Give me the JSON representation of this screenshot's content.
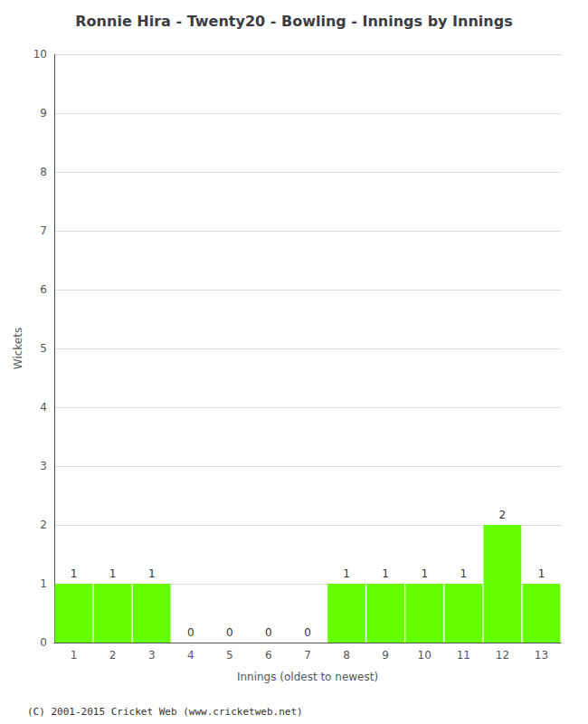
{
  "chart_data": {
    "type": "bar",
    "title": "Ronnie Hira - Twenty20 - Bowling - Innings by Innings",
    "xlabel": "Innings (oldest to newest)",
    "ylabel": "Wickets",
    "categories": [
      "1",
      "2",
      "3",
      "4",
      "5",
      "6",
      "7",
      "8",
      "9",
      "10",
      "11",
      "12",
      "13"
    ],
    "values": [
      1,
      1,
      1,
      0,
      0,
      0,
      0,
      1,
      1,
      1,
      1,
      2,
      1
    ],
    "color": "#66ff00",
    "ylim": [
      0,
      10
    ],
    "yticks": [
      0,
      1,
      2,
      3,
      4,
      5,
      6,
      7,
      8,
      9,
      10
    ],
    "grid": true,
    "data_labels": true,
    "annotations": [
      "(C) 2001-2015 Cricket Web (www.cricketweb.net)"
    ]
  }
}
